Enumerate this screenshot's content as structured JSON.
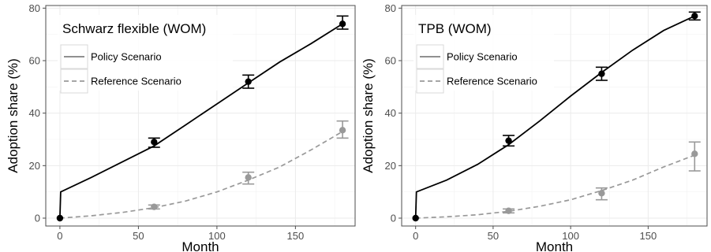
{
  "chart_data": [
    {
      "type": "line",
      "legend_title": "Schwarz flexible (WOM)",
      "xlabel": "Month",
      "ylabel": "Adoption share (%)",
      "xlim": [
        -9,
        188
      ],
      "ylim": [
        -3,
        81
      ],
      "xticks": [
        0,
        50,
        100,
        150
      ],
      "yticks": [
        0,
        20,
        40,
        60,
        80
      ],
      "grid": true,
      "legend_position": "top-left",
      "series": [
        {
          "name": "Policy Scenario",
          "color": "#000000",
          "style": "solid",
          "x": [
            0,
            0.5,
            20,
            40,
            60,
            80,
            100,
            120,
            140,
            160,
            180
          ],
          "y": [
            0,
            10,
            15.5,
            21.5,
            27.5,
            35.5,
            43.5,
            51.5,
            59.5,
            66.5,
            74
          ]
        },
        {
          "name": "Reference Scenario",
          "color": "#999999",
          "style": "dashed",
          "x": [
            0,
            20,
            40,
            60,
            80,
            100,
            120,
            140,
            160,
            180
          ],
          "y": [
            0,
            0.9,
            2.2,
            4,
            6.5,
            10,
            14.5,
            19.5,
            26,
            33
          ]
        }
      ],
      "observations": [
        {
          "series": "Policy Scenario",
          "color": "#000000",
          "points": [
            {
              "x": 0,
              "y": 0,
              "low": 0,
              "high": 0
            },
            {
              "x": 60,
              "y": 29,
              "low": 27,
              "high": 30.5
            },
            {
              "x": 120,
              "y": 52,
              "low": 49.5,
              "high": 54.5
            },
            {
              "x": 180,
              "y": 74,
              "low": 72,
              "high": 77
            }
          ]
        },
        {
          "series": "Reference Scenario",
          "color": "#999999",
          "points": [
            {
              "x": 60,
              "y": 4.3,
              "low": 3.5,
              "high": 5
            },
            {
              "x": 120,
              "y": 15.5,
              "low": 13,
              "high": 17.5
            },
            {
              "x": 180,
              "y": 33.5,
              "low": 30.5,
              "high": 37
            }
          ]
        }
      ]
    },
    {
      "type": "line",
      "legend_title": "TPB (WOM)",
      "xlabel": "Month",
      "ylabel": "Adoption share (%)",
      "xlim": [
        -9,
        188
      ],
      "ylim": [
        -3,
        81
      ],
      "xticks": [
        0,
        50,
        100,
        150
      ],
      "yticks": [
        0,
        20,
        40,
        60,
        80
      ],
      "grid": true,
      "legend_position": "top-left",
      "series": [
        {
          "name": "Policy Scenario",
          "color": "#000000",
          "style": "solid",
          "x": [
            0,
            0.5,
            20,
            40,
            60,
            80,
            100,
            120,
            140,
            160,
            180
          ],
          "y": [
            0,
            10,
            14.5,
            20.5,
            28,
            37,
            46.5,
            55.5,
            64,
            71.5,
            77
          ]
        },
        {
          "name": "Reference Scenario",
          "color": "#999999",
          "style": "dashed",
          "x": [
            0,
            20,
            40,
            60,
            80,
            100,
            120,
            140,
            160,
            180
          ],
          "y": [
            0,
            0.5,
            1.3,
            2.6,
            4.5,
            7,
            10.5,
            14.5,
            19.5,
            24
          ]
        }
      ],
      "observations": [
        {
          "series": "Policy Scenario",
          "color": "#000000",
          "points": [
            {
              "x": 0,
              "y": 0,
              "low": 0,
              "high": 0
            },
            {
              "x": 60,
              "y": 29.5,
              "low": 27.5,
              "high": 31.5
            },
            {
              "x": 120,
              "y": 55,
              "low": 52.5,
              "high": 57.5
            },
            {
              "x": 180,
              "y": 77,
              "low": 75.5,
              "high": 78.5
            }
          ]
        },
        {
          "series": "Reference Scenario",
          "color": "#999999",
          "points": [
            {
              "x": 60,
              "y": 2.8,
              "low": 2,
              "high": 3.5
            },
            {
              "x": 120,
              "y": 9.5,
              "low": 7,
              "high": 11.5
            },
            {
              "x": 180,
              "y": 24.5,
              "low": 18,
              "high": 29
            }
          ]
        }
      ]
    }
  ]
}
